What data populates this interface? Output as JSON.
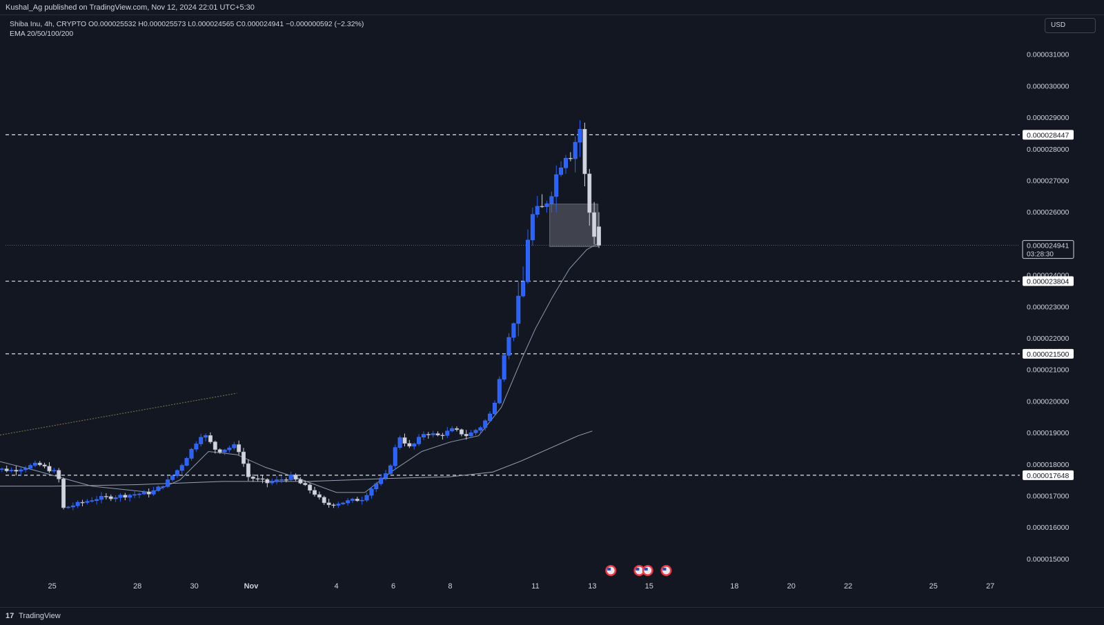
{
  "header": {
    "published": "Kushal_Ag published on TradingView.com, Nov 12, 2024 22:01 UTC+5:30"
  },
  "legend": {
    "symbol_line": "Shiba Inu, 4h, CRYPTO  O0.000025532  H0.000025573  L0.000024565  C0.000024941  −0.000000592 (−2.32%)",
    "indicator_line": "EMA 20/50/100/200"
  },
  "currency": "USD",
  "footer": {
    "logo_glyph": "17",
    "brand": "TradingView"
  },
  "colors": {
    "background": "#131722",
    "bull_candle": "#2962ff",
    "bear_candle": "#d1d4dc",
    "grid_text": "#d1d4dc",
    "ema20": "#8c9bb0",
    "ema50": "#9aa3b5"
  },
  "chart_data": {
    "type": "candlestick",
    "ylim": [
      1.47e-05,
      3.13e-05
    ],
    "y_ticks": [
      "0.000031000",
      "0.000030000",
      "0.000029000",
      "0.000028000",
      "0.000027000",
      "0.000026000",
      "0.000024000",
      "0.000023000",
      "0.000022000",
      "0.000021000",
      "0.000020000",
      "0.000019000",
      "0.000018000",
      "0.000017000",
      "0.000016000",
      "0.000015000"
    ],
    "y_tick_values": [
      31,
      30,
      29,
      28,
      27,
      26,
      24,
      23,
      22,
      21,
      20,
      19,
      18,
      17,
      16,
      15
    ],
    "x_labels": [
      "25",
      "28",
      "30",
      "Nov",
      "4",
      "6",
      "8",
      "11",
      "13",
      "15",
      "18",
      "20",
      "22",
      "25",
      "27"
    ],
    "x_label_days": [
      -7,
      -4,
      -2,
      0,
      3,
      5,
      7,
      10,
      12,
      14,
      17,
      19,
      21,
      24,
      26
    ],
    "horizontal_levels": [
      {
        "value": 28.447,
        "label": "0.000028447"
      },
      {
        "value": 23.804,
        "label": "0.000023804"
      },
      {
        "value": 21.5,
        "label": "0.000021500"
      },
      {
        "value": 17.648,
        "label": "0.000017648"
      }
    ],
    "last_price": {
      "value": 24.941,
      "label": "0.000024941",
      "countdown": "03:28:30"
    },
    "zone_box": {
      "day_from": 10.5,
      "day_to": 12.2,
      "top": 26.25,
      "bottom": 24.9
    },
    "trendline": {
      "day_from": -9.6,
      "y_from": 18.8,
      "day_to": -0.5,
      "y_to": 20.25
    },
    "event_markers": [
      12.65,
      13.65,
      13.95,
      14.6
    ],
    "price_unit_note": "values are in millionths of USD (x 1e-6)",
    "anchors": [
      {
        "day": -9.5,
        "v": 17.9
      },
      {
        "day": -8.4,
        "v": 17.8
      },
      {
        "day": -7.5,
        "v": 18.0
      },
      {
        "day": -6.8,
        "v": 17.7
      },
      {
        "day": -6.6,
        "v": 16.6
      },
      {
        "day": -5.5,
        "v": 16.9
      },
      {
        "day": -4.5,
        "v": 17.0
      },
      {
        "day": -3.5,
        "v": 17.1
      },
      {
        "day": -3.0,
        "v": 17.4
      },
      {
        "day": -2.5,
        "v": 17.9
      },
      {
        "day": -2.0,
        "v": 18.6
      },
      {
        "day": -1.7,
        "v": 19.0
      },
      {
        "day": -1.2,
        "v": 18.4
      },
      {
        "day": -0.5,
        "v": 18.6
      },
      {
        "day": -0.1,
        "v": 17.6
      },
      {
        "day": 0.6,
        "v": 17.4
      },
      {
        "day": 1.4,
        "v": 17.6
      },
      {
        "day": 2.2,
        "v": 17.1
      },
      {
        "day": 2.6,
        "v": 16.7
      },
      {
        "day": 3.3,
        "v": 16.8
      },
      {
        "day": 3.9,
        "v": 16.9
      },
      {
        "day": 4.3,
        "v": 17.3
      },
      {
        "day": 4.8,
        "v": 17.7
      },
      {
        "day": 5.2,
        "v": 18.9
      },
      {
        "day": 5.6,
        "v": 18.5
      },
      {
        "day": 6.1,
        "v": 19.0
      },
      {
        "day": 6.6,
        "v": 18.9
      },
      {
        "day": 7.1,
        "v": 19.1
      },
      {
        "day": 7.6,
        "v": 18.9
      },
      {
        "day": 8.1,
        "v": 19.2
      },
      {
        "day": 8.5,
        "v": 19.7
      },
      {
        "day": 8.9,
        "v": 21.5
      },
      {
        "day": 9.3,
        "v": 22.7
      },
      {
        "day": 9.55,
        "v": 23.6
      },
      {
        "day": 9.8,
        "v": 25.8
      },
      {
        "day": 10.2,
        "v": 26.0
      },
      {
        "day": 10.6,
        "v": 26.8
      },
      {
        "day": 11.0,
        "v": 27.9
      },
      {
        "day": 11.3,
        "v": 27.9
      },
      {
        "day": 11.55,
        "v": 28.8
      },
      {
        "day": 11.8,
        "v": 26.5
      },
      {
        "day": 12.0,
        "v": 25.5
      },
      {
        "day": 12.25,
        "v": 24.94
      }
    ],
    "ema20": [
      {
        "day": -9.8,
        "v": 18.3
      },
      {
        "day": -7.6,
        "v": 17.8
      },
      {
        "day": -5.6,
        "v": 17.3
      },
      {
        "day": -3.5,
        "v": 17.1
      },
      {
        "day": -2.5,
        "v": 17.5
      },
      {
        "day": -1.5,
        "v": 18.4
      },
      {
        "day": -0.5,
        "v": 18.3
      },
      {
        "day": 0.5,
        "v": 17.9
      },
      {
        "day": 1.5,
        "v": 17.6
      },
      {
        "day": 3.0,
        "v": 17.1
      },
      {
        "day": 4.0,
        "v": 17.1
      },
      {
        "day": 5.0,
        "v": 17.8
      },
      {
        "day": 6.0,
        "v": 18.4
      },
      {
        "day": 7.0,
        "v": 18.7
      },
      {
        "day": 8.0,
        "v": 18.9
      },
      {
        "day": 8.8,
        "v": 19.8
      },
      {
        "day": 9.5,
        "v": 21.3
      },
      {
        "day": 10.0,
        "v": 22.3
      },
      {
        "day": 10.6,
        "v": 23.3
      },
      {
        "day": 11.2,
        "v": 24.2
      },
      {
        "day": 11.8,
        "v": 24.8
      },
      {
        "day": 12.2,
        "v": 25.0
      }
    ],
    "ema50": [
      {
        "day": -9.8,
        "v": 17.3
      },
      {
        "day": -7.0,
        "v": 17.3
      },
      {
        "day": -4.0,
        "v": 17.35
      },
      {
        "day": -1.0,
        "v": 17.45
      },
      {
        "day": 2.0,
        "v": 17.45
      },
      {
        "day": 5.0,
        "v": 17.55
      },
      {
        "day": 7.0,
        "v": 17.6
      },
      {
        "day": 8.5,
        "v": 17.75
      },
      {
        "day": 9.5,
        "v": 18.1
      },
      {
        "day": 10.5,
        "v": 18.5
      },
      {
        "day": 11.5,
        "v": 18.9
      },
      {
        "day": 12.0,
        "v": 19.05
      }
    ]
  }
}
